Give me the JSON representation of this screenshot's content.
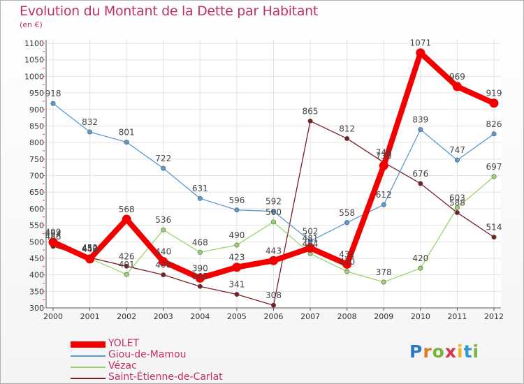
{
  "title": "Evolution du Montant de la Dette par Habitant",
  "unit": "(en €)",
  "logo": {
    "text": "Proxiti",
    "letter_colors": [
      "#2e78c8",
      "#e07a22",
      "#7ab33a",
      "#d8324e",
      "#f0b324",
      "#2e9ad6",
      "#7ab33a"
    ]
  },
  "chart_data": {
    "type": "line",
    "title": "Evolution du Montant de la Dette par Habitant",
    "ylabel": "(en €)",
    "ylim": [
      300,
      1100
    ],
    "yticks": [
      300,
      350,
      400,
      450,
      500,
      550,
      600,
      650,
      700,
      750,
      800,
      850,
      900,
      950,
      1000,
      1050,
      1100
    ],
    "x": [
      "2000",
      "2001",
      "2002",
      "2003",
      "2004",
      "2005",
      "2006",
      "2007",
      "2008",
      "2009",
      "2010",
      "2011",
      "2012"
    ],
    "grid": true,
    "legend_position": "bottom-left",
    "series": [
      {
        "name": "Saint-Étienne-de-Carlat",
        "color": "#7a1e24",
        "values": [
          486,
          452,
          426,
          400,
          365,
          341,
          308,
          865,
          812,
          740,
          676,
          588,
          514
        ]
      },
      {
        "name": "Vézac",
        "color": "#9ad46e",
        "values": [
          494,
          450,
          401,
          536,
          468,
          490,
          560,
          464,
          410,
          378,
          420,
          603,
          697
        ]
      },
      {
        "name": "Giou-de-Mamou",
        "color": "#5a9ad2",
        "values": [
          918,
          832,
          801,
          722,
          631,
          596,
          592,
          502,
          558,
          612,
          839,
          747,
          826
        ]
      },
      {
        "name": "YOLET",
        "color": "#f20000",
        "values": [
          499,
          448,
          568,
          440,
          390,
          423,
          443,
          481,
          432,
          730,
          1071,
          969,
          919
        ]
      }
    ],
    "legend": [
      "YOLET",
      "Giou-de-Mamou",
      "Vézac",
      "Saint-Étienne-de-Carlat"
    ]
  }
}
